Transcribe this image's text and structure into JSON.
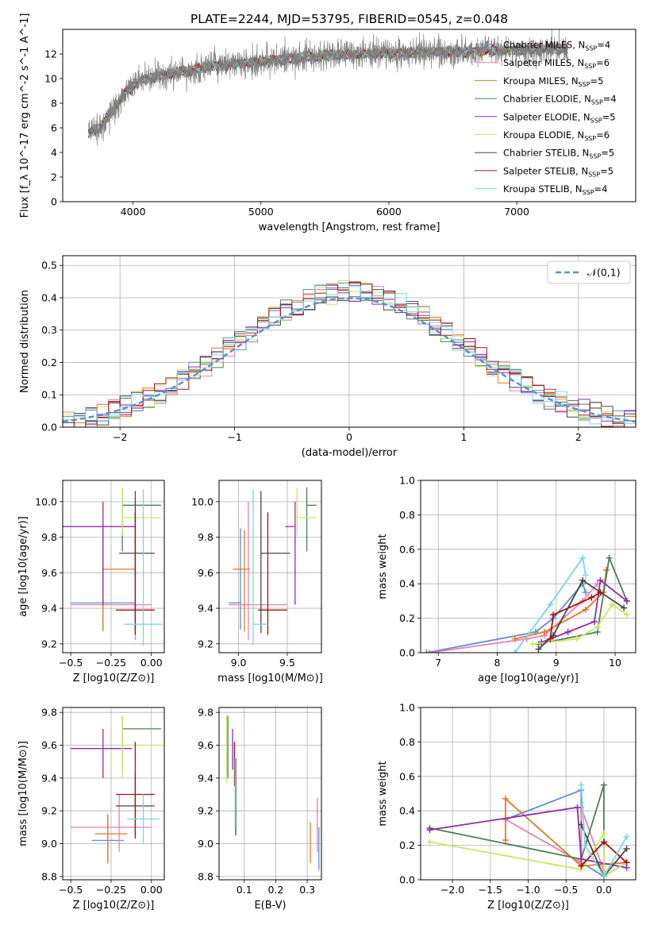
{
  "figure_title": "PLATE=2244, MJD=53795, FIBERID=0545, z=0.048",
  "colors": {
    "Chabrier MILES": "#5b8fd6",
    "Salpeter MILES": "#e87fb4",
    "Kroupa MILES": "#e07b1f",
    "Chabrier ELODIE": "#4f7d58",
    "Salpeter ELODIE": "#8e2bb0",
    "Kroupa ELODIE": "#c9e860",
    "Chabrier STELIB": "#474747",
    "Salpeter STELIB": "#aa1010",
    "Kroupa STELIB": "#7ad8dc",
    "data": "#808080"
  },
  "chart_data": [
    {
      "id": "spectrum",
      "type": "line",
      "xlabel": "wavelength [Angstrom, rest frame]",
      "ylabel": "Flux [f_λ 10^-17 erg cm^-2 s^-1 A^-1]",
      "xlim": [
        3450,
        7930
      ],
      "ylim": [
        0,
        14
      ],
      "xticks": [
        4000,
        5000,
        6000,
        7000
      ],
      "yticks": [
        0,
        2,
        4,
        6,
        8,
        10,
        12
      ],
      "legend_placement": "right",
      "legend": [
        {
          "name": "Chabrier MILES",
          "nssp": "4"
        },
        {
          "name": "Salpeter MILES",
          "nssp": "6"
        },
        {
          "name": "Kroupa MILES",
          "nssp": "5"
        },
        {
          "name": "Chabrier ELODIE",
          "nssp": "4"
        },
        {
          "name": "Salpeter ELODIE",
          "nssp": "5"
        },
        {
          "name": "Kroupa ELODIE",
          "nssp": "6"
        },
        {
          "name": "Chabrier STELIB",
          "nssp": "5"
        },
        {
          "name": "Salpeter STELIB",
          "nssp": "5"
        },
        {
          "name": "Kroupa STELIB",
          "nssp": "4"
        }
      ],
      "continuum": {
        "x": [
          3650,
          3750,
          3850,
          3900,
          3950,
          4050,
          4150,
          4300,
          4400,
          4600,
          4800,
          5000,
          5200,
          5400,
          5600,
          5800,
          6000,
          6200,
          6400,
          6600,
          6800,
          7000,
          7200,
          7400
        ],
        "y": [
          5.5,
          6.2,
          7.5,
          8.3,
          9.0,
          9.8,
          10.1,
          10.4,
          10.6,
          11.0,
          11.2,
          11.4,
          11.6,
          11.8,
          11.9,
          12.0,
          12.1,
          12.1,
          12.2,
          12.2,
          12.3,
          12.3,
          12.4,
          12.4
        ]
      }
    },
    {
      "id": "residuals",
      "type": "histogram",
      "xlabel": "(data-model)/error",
      "ylabel": "Normed distribution",
      "xlim": [
        -2.5,
        2.5
      ],
      "ylim": [
        0,
        0.53
      ],
      "xticks": [
        -2,
        -1,
        0,
        1,
        2
      ],
      "yticks": [
        0.0,
        0.1,
        0.2,
        0.3,
        0.4,
        0.5
      ],
      "legend_placement": "top-right",
      "reference_curve": {
        "label": "𝒩(0,1)",
        "mean": 0,
        "sigma": 1
      }
    },
    {
      "id": "age-vs-Z",
      "type": "errorbar",
      "xlabel": "Z [log10(Z/Z⊙)]",
      "ylabel": "age [log10(age/yr)]",
      "xlim": [
        -0.55,
        0.08
      ],
      "ylim": [
        9.15,
        10.12
      ],
      "xticks": [
        -0.5,
        -0.25,
        0.0
      ],
      "yticks": [
        9.2,
        9.4,
        9.6,
        9.8,
        10.0
      ],
      "points": [
        {
          "series": "Chabrier MILES",
          "x": -0.3,
          "xerr": [
            0.2,
            0.2
          ],
          "y": 9.43,
          "yerr": [
            0.15,
            0.42
          ]
        },
        {
          "series": "Salpeter MILES",
          "x": -0.1,
          "xerr": [
            0.4,
            0.1
          ],
          "y": 9.42,
          "yerr": [
            0.2,
            0.58
          ]
        },
        {
          "series": "Kroupa MILES",
          "x": -0.3,
          "xerr": [
            0.0,
            0.2
          ],
          "y": 9.62,
          "yerr": [
            0.35,
            0.22
          ]
        },
        {
          "series": "Chabrier ELODIE",
          "x": -0.18,
          "xerr": [
            0.0,
            0.24
          ],
          "y": 9.98,
          "yerr": [
            0.26,
            0.1
          ]
        },
        {
          "series": "Salpeter ELODIE",
          "x": -0.3,
          "xerr": [
            0.25,
            0.2
          ],
          "y": 9.86,
          "yerr": [
            0.44,
            0.14
          ]
        },
        {
          "series": "Kroupa ELODIE",
          "x": -0.18,
          "xerr": [
            0.0,
            0.24
          ],
          "y": 9.91,
          "yerr": [
            0.1,
            0.17
          ]
        },
        {
          "series": "Chabrier STELIB",
          "x": -0.1,
          "xerr": [
            0.1,
            0.12
          ],
          "y": 9.71,
          "yerr": [
            0.45,
            0.35
          ]
        },
        {
          "series": "Salpeter STELIB",
          "x": -0.1,
          "xerr": [
            0.12,
            0.12
          ],
          "y": 9.39,
          "yerr": [
            0.14,
            0.55
          ]
        },
        {
          "series": "Kroupa STELIB",
          "x": -0.05,
          "xerr": [
            0.12,
            0.12
          ],
          "y": 9.31,
          "yerr": [
            0.12,
            0.76
          ]
        }
      ]
    },
    {
      "id": "age-vs-mass",
      "type": "errorbar",
      "xlabel": "mass [log10(M/M⊙)]",
      "ylabel": "",
      "xlim": [
        8.8,
        9.85
      ],
      "ylim": [
        9.15,
        10.12
      ],
      "xticks": [
        9.0,
        9.5
      ],
      "yticks": [
        9.2,
        9.4,
        9.6,
        9.8,
        10.0
      ],
      "points": [
        {
          "series": "Chabrier MILES",
          "x": 9.02,
          "xerr": [
            0.12,
            0.0
          ],
          "y": 9.43,
          "yerr": [
            0.15,
            0.42
          ]
        },
        {
          "series": "Salpeter MILES",
          "x": 9.1,
          "xerr": [
            0.2,
            0.4
          ],
          "y": 9.42,
          "yerr": [
            0.2,
            0.58
          ]
        },
        {
          "series": "Kroupa MILES",
          "x": 9.06,
          "xerr": [
            0.12,
            0.06
          ],
          "y": 9.62,
          "yerr": [
            0.35,
            0.22
          ]
        },
        {
          "series": "Chabrier ELODIE",
          "x": 9.7,
          "xerr": [
            0.0,
            0.1
          ],
          "y": 9.98,
          "yerr": [
            0.26,
            0.1
          ]
        },
        {
          "series": "Salpeter ELODIE",
          "x": 9.58,
          "xerr": [
            0.1,
            0.0
          ],
          "y": 9.86,
          "yerr": [
            0.44,
            0.14
          ]
        },
        {
          "series": "Kroupa ELODIE",
          "x": 9.6,
          "xerr": [
            0.0,
            0.2
          ],
          "y": 9.91,
          "yerr": [
            0.1,
            0.17
          ]
        },
        {
          "series": "Chabrier STELIB",
          "x": 9.23,
          "xerr": [
            0.0,
            0.3
          ],
          "y": 9.71,
          "yerr": [
            0.45,
            0.35
          ]
        },
        {
          "series": "Salpeter STELIB",
          "x": 9.3,
          "xerr": [
            0.1,
            0.2
          ],
          "y": 9.39,
          "yerr": [
            0.14,
            0.55
          ]
        },
        {
          "series": "Kroupa STELIB",
          "x": 9.15,
          "xerr": [
            0.0,
            0.15
          ],
          "y": 9.31,
          "yerr": [
            0.12,
            0.76
          ]
        }
      ]
    },
    {
      "id": "mass-weight-vs-age",
      "type": "line",
      "xlabel": "age [log10(age/yr)]",
      "ylabel": "mass weight",
      "xlim": [
        6.7,
        10.35
      ],
      "ylim": [
        0,
        1.0
      ],
      "xticks": [
        7,
        8,
        9,
        10
      ],
      "yticks": [
        0.0,
        0.2,
        0.4,
        0.6,
        0.8,
        1.0
      ],
      "series": [
        {
          "name": "Chabrier MILES",
          "x": [
            6.8,
            8.65,
            8.95,
            9.45,
            9.5
          ],
          "y": [
            0.0,
            0.12,
            0.2,
            0.4,
            0.35
          ]
        },
        {
          "name": "Salpeter MILES",
          "x": [
            6.85,
            8.5,
            8.8,
            9.45,
            9.7
          ],
          "y": [
            0.0,
            0.08,
            0.1,
            0.3,
            0.4
          ]
        },
        {
          "name": "Kroupa MILES",
          "x": [
            8.3,
            8.8,
            9.5,
            9.8,
            9.85
          ],
          "y": [
            0.08,
            0.12,
            0.25,
            0.35,
            0.48
          ]
        },
        {
          "name": "Chabrier ELODIE",
          "x": [
            8.7,
            9.7,
            9.9,
            10.2
          ],
          "y": [
            0.05,
            0.12,
            0.55,
            0.3
          ]
        },
        {
          "name": "Salpeter ELODIE",
          "x": [
            8.75,
            9.2,
            9.65,
            9.75,
            10.2
          ],
          "y": [
            0.06,
            0.12,
            0.18,
            0.42,
            0.3
          ]
        },
        {
          "name": "Kroupa ELODIE",
          "x": [
            8.6,
            9.35,
            9.7,
            9.95,
            10.2
          ],
          "y": [
            0.05,
            0.08,
            0.15,
            0.28,
            0.22
          ]
        },
        {
          "name": "Chabrier STELIB",
          "x": [
            8.7,
            8.95,
            9.45,
            10.15
          ],
          "y": [
            0.02,
            0.1,
            0.42,
            0.26
          ]
        },
        {
          "name": "Salpeter STELIB",
          "x": [
            8.9,
            8.95,
            9.6,
            9.75
          ],
          "y": [
            0.08,
            0.22,
            0.32,
            0.35
          ]
        },
        {
          "name": "Kroupa STELIB",
          "x": [
            8.3,
            8.9,
            9.45,
            9.5
          ],
          "y": [
            0.0,
            0.28,
            0.55,
            0.45
          ]
        }
      ]
    },
    {
      "id": "mass-vs-Z",
      "type": "errorbar",
      "xlabel": "Z [log10(Z/Z⊙)]",
      "ylabel": "mass [log10(M/M⊙)]",
      "xlim": [
        -0.55,
        0.08
      ],
      "ylim": [
        8.78,
        9.83
      ],
      "xticks": [
        -0.5,
        -0.25,
        0.0
      ],
      "yticks": [
        8.8,
        9.0,
        9.2,
        9.4,
        9.6,
        9.8
      ],
      "points": [
        {
          "series": "Chabrier MILES",
          "x": -0.27,
          "xerr": [
            0.1,
            0.1
          ],
          "y": 9.02,
          "yerr": [
            0.12,
            0.15
          ]
        },
        {
          "series": "Salpeter MILES",
          "x": -0.2,
          "xerr": [
            0.3,
            0.2
          ],
          "y": 9.1,
          "yerr": [
            0.15,
            0.2
          ]
        },
        {
          "series": "Kroupa MILES",
          "x": -0.27,
          "xerr": [
            0.08,
            0.12
          ],
          "y": 9.06,
          "yerr": [
            0.18,
            0.12
          ]
        },
        {
          "series": "Chabrier ELODIE",
          "x": -0.18,
          "xerr": [
            0.0,
            0.24
          ],
          "y": 9.7,
          "yerr": [
            0.25,
            0.08
          ]
        },
        {
          "series": "Salpeter ELODIE",
          "x": -0.3,
          "xerr": [
            0.2,
            0.18
          ],
          "y": 9.58,
          "yerr": [
            0.18,
            0.12
          ]
        },
        {
          "series": "Kroupa ELODIE",
          "x": -0.18,
          "xerr": [
            0.0,
            0.27
          ],
          "y": 9.6,
          "yerr": [
            0.2,
            0.18
          ]
        },
        {
          "series": "Chabrier STELIB",
          "x": -0.1,
          "xerr": [
            0.12,
            0.12
          ],
          "y": 9.23,
          "yerr": [
            0.2,
            0.2
          ]
        },
        {
          "series": "Salpeter STELIB",
          "x": -0.1,
          "xerr": [
            0.12,
            0.12
          ],
          "y": 9.3,
          "yerr": [
            0.25,
            0.32
          ]
        },
        {
          "series": "Kroupa STELIB",
          "x": -0.05,
          "xerr": [
            0.1,
            0.1
          ],
          "y": 9.15,
          "yerr": [
            0.15,
            0.15
          ]
        }
      ]
    },
    {
      "id": "mass-vs-ebv",
      "type": "errorbar",
      "xlabel": "E(B-V)",
      "ylabel": "",
      "xlim": [
        0.02,
        0.345
      ],
      "ylim": [
        8.78,
        9.83
      ],
      "xticks": [
        0.1,
        0.2,
        0.3
      ],
      "yticks": [
        8.8,
        9.0,
        9.2,
        9.4,
        9.6,
        9.8
      ],
      "points": [
        {
          "series": "Chabrier MILES",
          "x": 0.337,
          "xerr": [
            0.0,
            0.0
          ],
          "y": 9.0,
          "yerr": [
            0.16,
            0.1
          ]
        },
        {
          "series": "Salpeter MILES",
          "x": 0.332,
          "xerr": [
            0.0,
            0.0
          ],
          "y": 9.1,
          "yerr": [
            0.15,
            0.18
          ]
        },
        {
          "series": "Kroupa MILES",
          "x": 0.31,
          "xerr": [
            0.0,
            0.0
          ],
          "y": 9.0,
          "yerr": [
            0.12,
            0.13
          ]
        },
        {
          "series": "Chabrier ELODIE",
          "x": 0.048,
          "xerr": [
            0.0,
            0.0
          ],
          "y": 9.6,
          "yerr": [
            0.2,
            0.18
          ]
        },
        {
          "series": "Salpeter ELODIE",
          "x": 0.063,
          "xerr": [
            0.0,
            0.0
          ],
          "y": 9.6,
          "yerr": [
            0.15,
            0.1
          ]
        },
        {
          "series": "Kroupa ELODIE",
          "x": 0.044,
          "xerr": [
            0.0,
            0.0
          ],
          "y": 9.6,
          "yerr": [
            0.23,
            0.18
          ]
        },
        {
          "series": "Chabrier STELIB",
          "x": 0.073,
          "xerr": [
            0.0,
            0.0
          ],
          "y": 9.22,
          "yerr": [
            0.17,
            0.3
          ]
        },
        {
          "series": "Salpeter STELIB",
          "x": 0.069,
          "xerr": [
            0.0,
            0.0
          ],
          "y": 9.5,
          "yerr": [
            0.15,
            0.12
          ]
        },
        {
          "series": "Kroupa STELIB",
          "x": 0.071,
          "xerr": [
            0.0,
            0.0
          ],
          "y": 9.3,
          "yerr": [
            0.2,
            0.22
          ]
        }
      ]
    },
    {
      "id": "mass-weight-vs-Z",
      "type": "line",
      "xlabel": "Z [log10(Z/Z⊙)]",
      "ylabel": "mass weight",
      "xlim": [
        -2.42,
        0.42
      ],
      "ylim": [
        0,
        1.0
      ],
      "xticks": [
        -2.0,
        -1.5,
        -1.0,
        -0.5,
        0.0
      ],
      "yticks": [
        0.0,
        0.2,
        0.4,
        0.6,
        0.8,
        1.0
      ],
      "series": [
        {
          "name": "Chabrier MILES",
          "x": [
            -1.3,
            -0.3,
            -0.3,
            0.0
          ],
          "y": [
            0.35,
            0.52,
            0.1,
            0.02
          ]
        },
        {
          "name": "Salpeter MILES",
          "x": [
            -1.3,
            -0.3,
            -0.3,
            0.0
          ],
          "y": [
            0.35,
            0.1,
            0.42,
            0.05
          ]
        },
        {
          "name": "Kroupa MILES",
          "x": [
            -1.3,
            -1.3,
            -0.3,
            0.3
          ],
          "y": [
            0.23,
            0.47,
            0.08,
            0.1
          ]
        },
        {
          "name": "Chabrier ELODIE",
          "x": [
            -2.3,
            -0.3,
            0.0,
            0.0,
            0.3
          ],
          "y": [
            0.3,
            0.12,
            0.55,
            0.02,
            0.1
          ]
        },
        {
          "name": "Salpeter ELODIE",
          "x": [
            -2.3,
            -0.35,
            -0.3,
            0.3
          ],
          "y": [
            0.29,
            0.42,
            0.12,
            0.07
          ]
        },
        {
          "name": "Kroupa ELODIE",
          "x": [
            -2.3,
            -0.3,
            0.0,
            0.0,
            0.3
          ],
          "y": [
            0.22,
            0.06,
            0.27,
            0.02,
            0.1
          ]
        },
        {
          "name": "Chabrier STELIB",
          "x": [
            -0.3,
            0.0,
            0.3
          ],
          "y": [
            0.32,
            0.02,
            0.18
          ]
        },
        {
          "name": "Salpeter STELIB",
          "x": [
            -0.3,
            0.0,
            0.3
          ],
          "y": [
            0.08,
            0.22,
            0.1
          ]
        },
        {
          "name": "Kroupa STELIB",
          "x": [
            -0.3,
            -0.25,
            0.0,
            0.3
          ],
          "y": [
            0.55,
            0.2,
            0.02,
            0.25
          ]
        }
      ]
    }
  ]
}
